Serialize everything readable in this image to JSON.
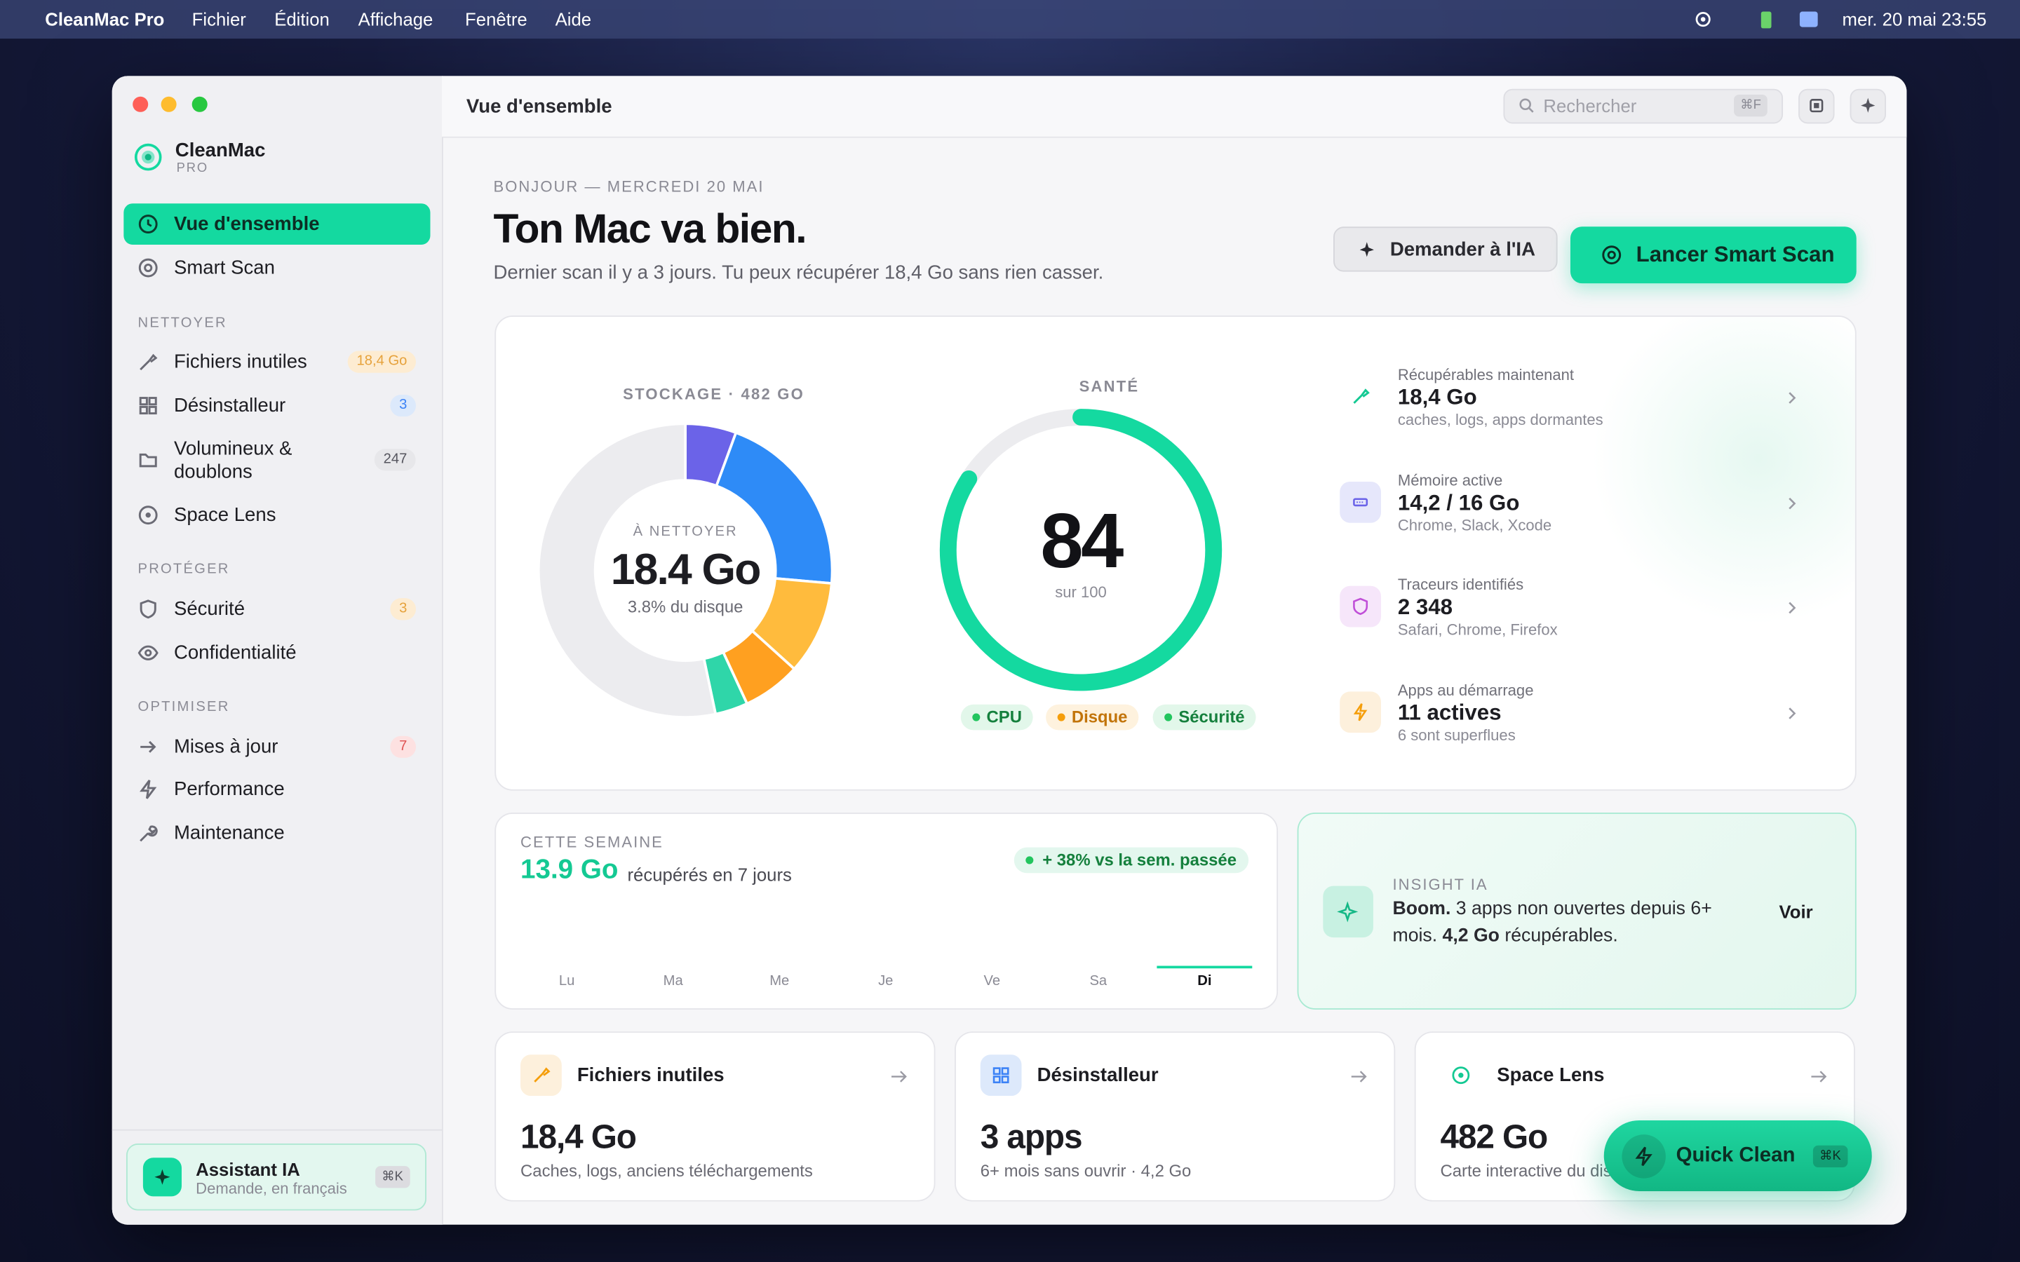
{
  "menubar": {
    "app": "CleanMac Pro",
    "menus": [
      "Fichier",
      "Édition",
      "Affichage",
      "Fenêtre",
      "Aide"
    ],
    "clock": "mer. 20 mai 23:55"
  },
  "toolbar": {
    "title": "Vue d'ensemble",
    "search_placeholder": "Rechercher",
    "search_shortcut": "⌘F"
  },
  "sidebar": {
    "brand": "CleanMac",
    "brand_sub": "PRO",
    "nav": [
      "Vue d'ensemble",
      "Smart Scan"
    ],
    "sections": [
      {
        "title": "NETTOYER",
        "items": [
          {
            "label": "Fichiers inutiles",
            "badge": "18,4 Go"
          },
          {
            "label": "Désinstalleur",
            "badge": 3
          },
          {
            "label": "Volumineux & doublons",
            "badge": 247
          },
          {
            "label": "Space Lens"
          }
        ]
      },
      {
        "title": "PROTÉGER",
        "items": [
          {
            "label": "Sécurité",
            "badge": 3
          },
          {
            "label": "Confidentialité"
          }
        ]
      },
      {
        "title": "OPTIMISER",
        "items": [
          {
            "label": "Mises à jour",
            "badge": 7
          },
          {
            "label": "Performance"
          },
          {
            "label": "Maintenance"
          }
        ]
      }
    ],
    "assistant": {
      "title": "Assistant IA",
      "subtitle": "Demande, en français",
      "shortcut": "⌘K"
    }
  },
  "header": {
    "eyebrow": "BONJOUR — MERCREDI 20 MAI",
    "title": "Ton Mac va bien.",
    "subtitle": "Dernier scan il y a 3 jours. Tu peux récupérer 18,4 Go sans rien casser.",
    "ask_button": "Demander à l'IA",
    "scan_button": "Lancer Smart Scan"
  },
  "storage": {
    "label": "STOCKAGE · 482 GO",
    "center_label": "À NETTOYER",
    "center_value": "18.4 Go",
    "center_sub": "3.8% du disque",
    "segments": [
      {
        "value": 5.6,
        "color": "#6b63e8"
      },
      {
        "value": 20.8,
        "color": "#2e8bf7"
      },
      {
        "value": 10.3,
        "color": "#ffbb3d"
      },
      {
        "value": 6.4,
        "color": "#ffa020"
      },
      {
        "value": 3.6,
        "color": "#2fd6a9"
      },
      {
        "value": 53.3,
        "color": "#ececef"
      }
    ]
  },
  "health": {
    "label": "SANTÉ",
    "score": 84,
    "range": [
      0,
      100
    ],
    "max_label": "sur 100",
    "color": "#14d9a0",
    "chips": [
      {
        "label": "CPU",
        "color": "#22c55e"
      },
      {
        "label": "Disque",
        "color": "#f59e0b"
      },
      {
        "label": "Sécurité",
        "color": "#22c55e"
      }
    ]
  },
  "stats": [
    {
      "title": "Récupérables maintenant",
      "value": "18,4 Go",
      "sub": "caches, logs, apps dormantes"
    },
    {
      "title": "Mémoire active",
      "value": "14,2 / 16 Go",
      "sub": "Chrome, Slack, Xcode"
    },
    {
      "title": "Traceurs identifiés",
      "value": "2 348",
      "sub": "Safari, Chrome, Firefox"
    },
    {
      "title": "Apps au démarrage",
      "value": "11 actives",
      "sub": "6 sont superflues"
    }
  ],
  "week": {
    "label": "CETTE SEMAINE",
    "value": "13.9 Go",
    "value_sub": "récupérés en 7 jours",
    "trend": "+ 38% vs la sem. passée",
    "days": [
      "Lu",
      "Ma",
      "Me",
      "Je",
      "Ve",
      "Sa",
      "Di"
    ]
  },
  "insight": {
    "label": "INSIGHT IA",
    "lead": "Boom.",
    "text": " 3 apps non ouvertes depuis 6+ mois. ",
    "highlight": "4,2 Go",
    "tail": " récupérables.",
    "action": "Voir"
  },
  "cards": [
    {
      "title": "Fichiers inutiles",
      "value": "18,4 Go",
      "sub": "Caches, logs, anciens téléchargements"
    },
    {
      "title": "Désinstalleur",
      "value": "3 apps",
      "sub": "6+ mois sans ouvrir · 4,2 Go"
    },
    {
      "title": "Space Lens",
      "value": "482 Go",
      "sub": "Carte interactive du disque"
    }
  ],
  "quick_clean": {
    "label": "Quick Clean",
    "shortcut": "⌘K"
  }
}
